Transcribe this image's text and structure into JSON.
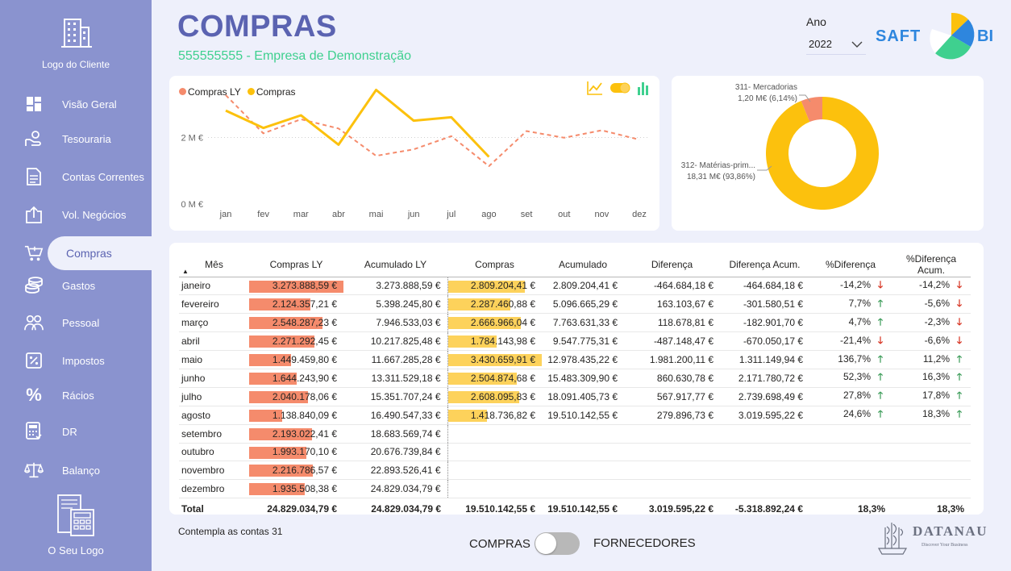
{
  "sidebar": {
    "client_logo": "Logo do Cliente",
    "own_logo": "O Seu Logo",
    "items": [
      {
        "label": "Visão Geral",
        "icon": "dashboard-icon"
      },
      {
        "label": "Tesouraria",
        "icon": "hand-coin-icon"
      },
      {
        "label": "Contas Correntes",
        "icon": "document-icon"
      },
      {
        "label": "Vol. Negócios",
        "icon": "upload-box-icon"
      },
      {
        "label": "Compras",
        "icon": "cart-icon",
        "active": true
      },
      {
        "label": "Gastos",
        "icon": "coins-icon"
      },
      {
        "label": "Pessoal",
        "icon": "people-icon"
      },
      {
        "label": "Impostos",
        "icon": "percent-doc-icon"
      },
      {
        "label": "Rácios",
        "icon": "percent-icon"
      },
      {
        "label": "DR",
        "icon": "calculator-icon"
      },
      {
        "label": "Balanço",
        "icon": "scale-icon"
      }
    ]
  },
  "header": {
    "title": "COMPRAS",
    "subtitle": "555555555 - Empresa de Demonstração",
    "year_label": "Ano",
    "year_value": "2022",
    "brand_left": "SAFT",
    "brand_right": "BI"
  },
  "line_chart": {
    "legend": [
      "Compras LY",
      "Compras"
    ]
  },
  "chart_data": [
    {
      "type": "line",
      "categories": [
        "jan",
        "fev",
        "mar",
        "abr",
        "mai",
        "jun",
        "jul",
        "ago",
        "set",
        "out",
        "nov",
        "dez"
      ],
      "y_ticks": [
        "0 M €",
        "2 M €"
      ],
      "ylim": [
        0,
        4000000
      ],
      "colors": {
        "Compras LY": "#f58b6c",
        "Compras": "#fcc10d"
      },
      "series": [
        {
          "name": "Compras LY",
          "style": "dashed",
          "values": [
            3273888.59,
            2124357.21,
            2548287.23,
            2271292.45,
            1449459.8,
            1644243.9,
            2040178.06,
            1138840.09,
            2193022.41,
            1993170.1,
            2216786.57,
            1935508.38
          ]
        },
        {
          "name": "Compras",
          "style": "solid",
          "values": [
            2809204.41,
            2287460.88,
            2666966.04,
            1784143.98,
            3430659.91,
            2504874.68,
            2608095.83,
            1418736.82,
            null,
            null,
            null,
            null
          ]
        }
      ]
    },
    {
      "type": "pie",
      "donut": true,
      "slices": [
        {
          "label": "311- Mercadorias",
          "value_label": "1,20 M€ (6,14%)",
          "value": 6.14,
          "color": "#f58b6c"
        },
        {
          "label": "312- Matérias-prim...",
          "value_label": "18,31 M€ (93,86%)",
          "value": 93.86,
          "color": "#fcc10d"
        }
      ]
    }
  ],
  "table": {
    "headers": [
      "Mês",
      "Compras LY",
      "Acumulado LY",
      "Compras",
      "Acumulado",
      "Diferença",
      "Diferença Acum.",
      "%Diferença",
      "%Diferença Acum."
    ],
    "max_ly": 3273888.59,
    "max_c": 3430659.91,
    "rows": [
      {
        "mes": "janeiro",
        "ly": "3.273.888,59 €",
        "ly_n": 3273888.59,
        "acly": "3.273.888,59 €",
        "c": "2.809.204,41 €",
        "c_n": 2809204.41,
        "ac": "2.809.204,41 €",
        "dif": "-464.684,18 €",
        "difa": "-464.684,18 €",
        "pd": "-14,2%",
        "pd_dir": "down",
        "pda": "-14,2%",
        "pda_dir": "down"
      },
      {
        "mes": "fevereiro",
        "ly": "2.124.357,21 €",
        "ly_n": 2124357.21,
        "acly": "5.398.245,80 €",
        "c": "2.287.460,88 €",
        "c_n": 2287460.88,
        "ac": "5.096.665,29 €",
        "dif": "163.103,67 €",
        "difa": "-301.580,51 €",
        "pd": "7,7%",
        "pd_dir": "up",
        "pda": "-5,6%",
        "pda_dir": "down"
      },
      {
        "mes": "março",
        "ly": "2.548.287,23 €",
        "ly_n": 2548287.23,
        "acly": "7.946.533,03 €",
        "c": "2.666.966,04 €",
        "c_n": 2666966.04,
        "ac": "7.763.631,33 €",
        "dif": "118.678,81 €",
        "difa": "-182.901,70 €",
        "pd": "4,7%",
        "pd_dir": "up",
        "pda": "-2,3%",
        "pda_dir": "down"
      },
      {
        "mes": "abril",
        "ly": "2.271.292,45 €",
        "ly_n": 2271292.45,
        "acly": "10.217.825,48 €",
        "c": "1.784.143,98 €",
        "c_n": 1784143.98,
        "ac": "9.547.775,31 €",
        "dif": "-487.148,47 €",
        "difa": "-670.050,17 €",
        "pd": "-21,4%",
        "pd_dir": "down",
        "pda": "-6,6%",
        "pda_dir": "down"
      },
      {
        "mes": "maio",
        "ly": "1.449.459,80 €",
        "ly_n": 1449459.8,
        "acly": "11.667.285,28 €",
        "c": "3.430.659,91 €",
        "c_n": 3430659.91,
        "ac": "12.978.435,22 €",
        "dif": "1.981.200,11 €",
        "difa": "1.311.149,94 €",
        "pd": "136,7%",
        "pd_dir": "up",
        "pda": "11,2%",
        "pda_dir": "up"
      },
      {
        "mes": "junho",
        "ly": "1.644.243,90 €",
        "ly_n": 1644243.9,
        "acly": "13.311.529,18 €",
        "c": "2.504.874,68 €",
        "c_n": 2504874.68,
        "ac": "15.483.309,90 €",
        "dif": "860.630,78 €",
        "difa": "2.171.780,72 €",
        "pd": "52,3%",
        "pd_dir": "up",
        "pda": "16,3%",
        "pda_dir": "up"
      },
      {
        "mes": "julho",
        "ly": "2.040.178,06 €",
        "ly_n": 2040178.06,
        "acly": "15.351.707,24 €",
        "c": "2.608.095,83 €",
        "c_n": 2608095.83,
        "ac": "18.091.405,73 €",
        "dif": "567.917,77 €",
        "difa": "2.739.698,49 €",
        "pd": "27,8%",
        "pd_dir": "up",
        "pda": "17,8%",
        "pda_dir": "up"
      },
      {
        "mes": "agosto",
        "ly": "1.138.840,09 €",
        "ly_n": 1138840.09,
        "acly": "16.490.547,33 €",
        "c": "1.418.736,82 €",
        "c_n": 1418736.82,
        "ac": "19.510.142,55 €",
        "dif": "279.896,73 €",
        "difa": "3.019.595,22 €",
        "pd": "24,6%",
        "pd_dir": "up",
        "pda": "18,3%",
        "pda_dir": "up"
      },
      {
        "mes": "setembro",
        "ly": "2.193.022,41 €",
        "ly_n": 2193022.41,
        "acly": "18.683.569,74 €"
      },
      {
        "mes": "outubro",
        "ly": "1.993.170,10 €",
        "ly_n": 1993170.1,
        "acly": "20.676.739,84 €"
      },
      {
        "mes": "novembro",
        "ly": "2.216.786,57 €",
        "ly_n": 2216786.57,
        "acly": "22.893.526,41 €"
      },
      {
        "mes": "dezembro",
        "ly": "1.935.508,38 €",
        "ly_n": 1935508.38,
        "acly": "24.829.034,79 €"
      }
    ],
    "total": {
      "mes": "Total",
      "ly": "24.829.034,79 €",
      "acly": "24.829.034,79 €",
      "c": "19.510.142,55 €",
      "ac": "19.510.142,55 €",
      "dif": "3.019.595,22 €",
      "difa": "-5.318.892,24 €",
      "pd": "18,3%",
      "pda": "18,3%"
    }
  },
  "footer": {
    "note": "Contempla as contas 31",
    "toggle_left": "COMPRAS",
    "toggle_right": "FORNECEDORES",
    "brand": "DATANAU",
    "brand_tagline": "Discover Your Business"
  }
}
